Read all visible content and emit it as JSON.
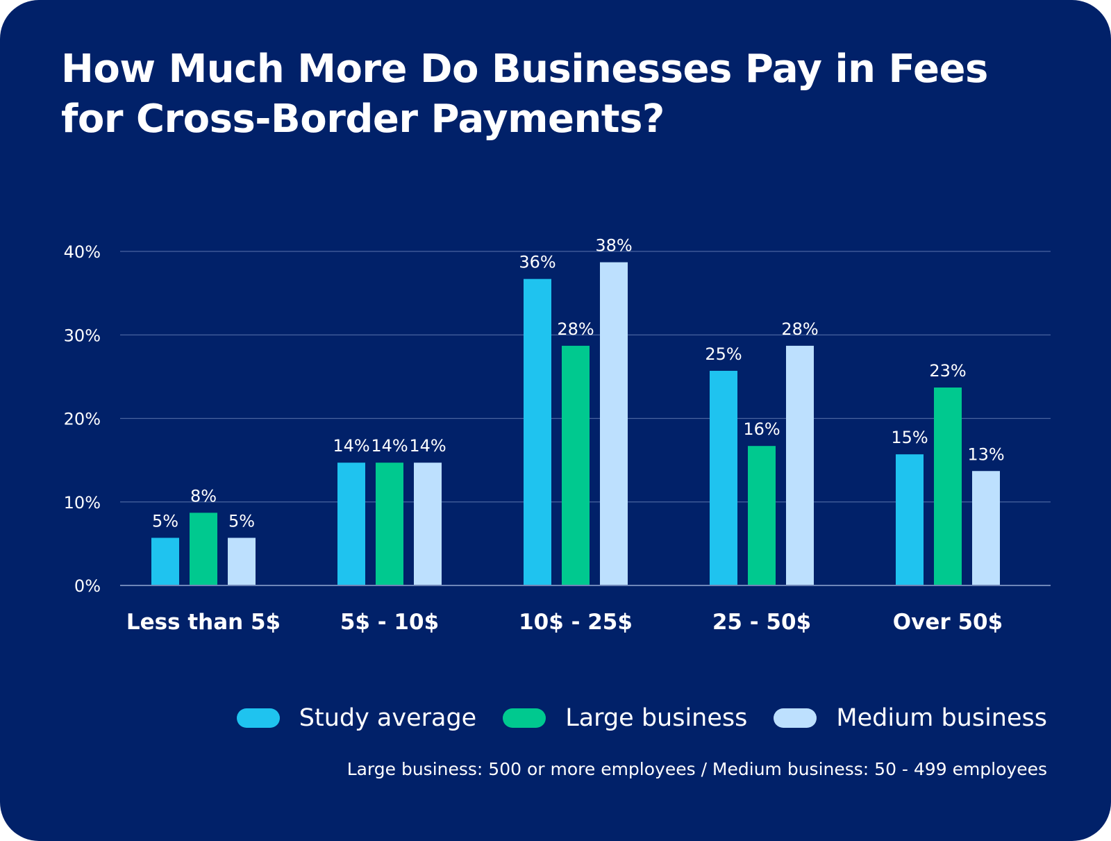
{
  "chart_data": {
    "type": "bar",
    "title": "How Much More Do Businesses Pay in Fees for Cross-Border Payments?",
    "categories": [
      "Less than 5$",
      "5$ - 10$",
      "10$ - 25$",
      "25 - 50$",
      "Over 50$"
    ],
    "series": [
      {
        "name": "Study average",
        "color": "#1fc3ef",
        "values": [
          5,
          14,
          36,
          25,
          15
        ]
      },
      {
        "name": "Large business",
        "color": "#00c98f",
        "values": [
          8,
          14,
          28,
          16,
          23
        ]
      },
      {
        "name": "Medium business",
        "color": "#bde0fe",
        "values": [
          5,
          14,
          38,
          28,
          13
        ]
      }
    ],
    "data_labels": [
      [
        "5%",
        "14%",
        "36%",
        "25%",
        "15%"
      ],
      [
        "8%",
        "14%",
        "28%",
        "16%",
        "23%"
      ],
      [
        "5%",
        "14%",
        "38%",
        "28%",
        "13%"
      ]
    ],
    "yticks": [
      "0%",
      "10%",
      "20%",
      "30%",
      "40%"
    ],
    "ylim": [
      0,
      40
    ],
    "grid": true,
    "legend": "bottom-right",
    "note": "Large business: 500 or more employees / Medium business: 50 - 499 employees",
    "background": "#012169"
  }
}
